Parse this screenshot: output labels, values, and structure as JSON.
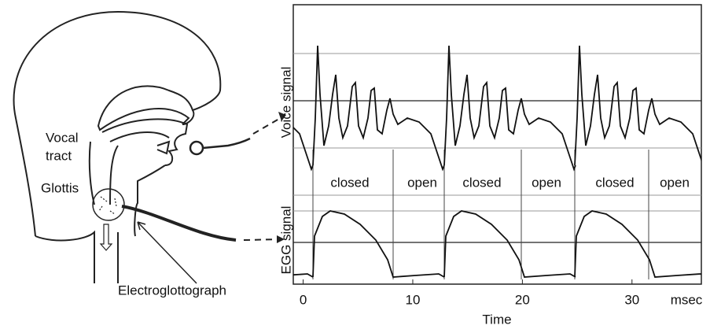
{
  "head": {
    "vocal_tract": [
      "Vocal",
      "tract"
    ],
    "glottis": "Glottis",
    "device": "Electroglottograph"
  },
  "plot": {
    "y_labels": [
      "Voice signal",
      "EGG signal"
    ],
    "phases": [
      "closed",
      "open",
      "closed",
      "open",
      "closed",
      "open"
    ],
    "x_axis": {
      "label": "Time",
      "unit": "msec",
      "ticks": [
        0,
        10,
        20,
        30
      ],
      "xlim": [
        -0.4,
        36.4
      ]
    }
  }
}
